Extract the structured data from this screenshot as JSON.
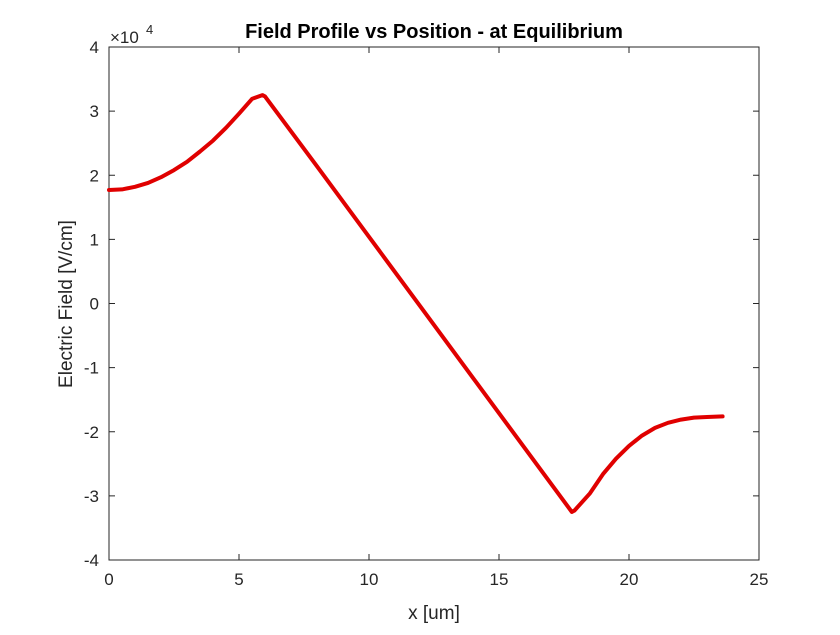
{
  "chart_data": {
    "type": "line",
    "title": "Field Profile vs Position - at Equilibrium",
    "xlabel": "x [um]",
    "ylabel": "Electric Field [V/cm]",
    "xlim": [
      0,
      25
    ],
    "ylim": [
      -4,
      4
    ],
    "xticks": [
      0,
      5,
      10,
      15,
      20,
      25
    ],
    "yticks": [
      -4,
      -3,
      -2,
      -1,
      0,
      1,
      2,
      3,
      4
    ],
    "xtick_labels": [
      "0",
      "5",
      "10",
      "15",
      "20",
      "25"
    ],
    "ytick_labels": [
      "-4",
      "-3",
      "-2",
      "-1",
      "0",
      "1",
      "2",
      "3",
      "4"
    ],
    "y_multiplier": {
      "prefix": "×10",
      "exponent": "4"
    },
    "grid": false,
    "box": true,
    "series": [
      {
        "color": "#e00000",
        "x": [
          0,
          0.5,
          1,
          1.5,
          2,
          2.5,
          3,
          3.5,
          4,
          4.5,
          5,
          5.5,
          5.9,
          6.0,
          8,
          10,
          12,
          14,
          16,
          17.8,
          17.9,
          18.5,
          19,
          19.5,
          20,
          20.5,
          21,
          21.5,
          22,
          22.5,
          23,
          23.6
        ],
        "values": [
          1.77,
          1.78,
          1.82,
          1.88,
          1.97,
          2.08,
          2.21,
          2.37,
          2.54,
          2.74,
          2.96,
          3.19,
          3.25,
          3.23,
          2.14,
          1.04,
          -0.06,
          -1.16,
          -2.26,
          -3.25,
          -3.23,
          -2.96,
          -2.66,
          -2.42,
          -2.22,
          -2.06,
          -1.94,
          -1.86,
          -1.81,
          -1.78,
          -1.77,
          -1.76
        ]
      }
    ]
  }
}
